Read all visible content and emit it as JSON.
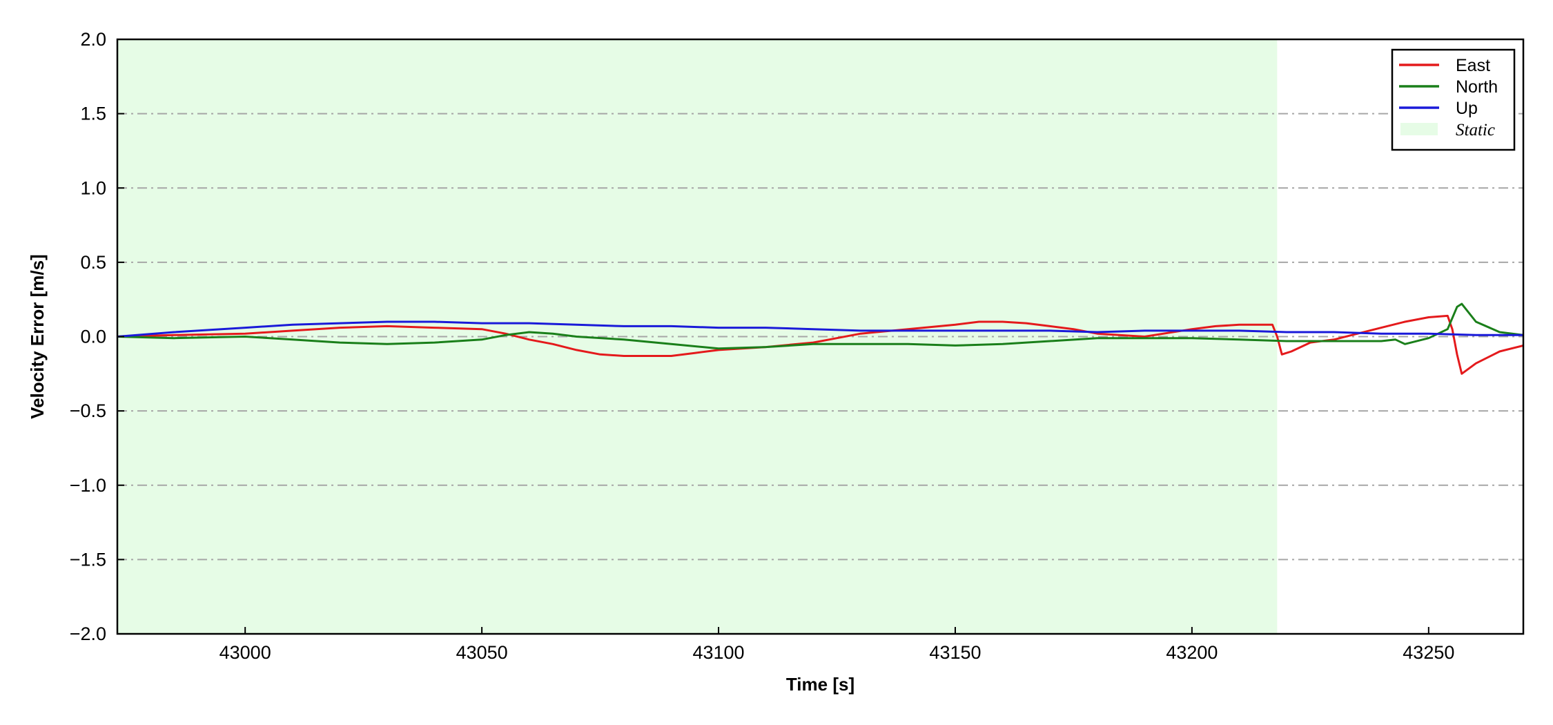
{
  "chart_data": {
    "type": "line",
    "xlabel": "Time [s]",
    "ylabel": "Velocity Error [m/s]",
    "xlim": [
      42973,
      43270
    ],
    "ylim": [
      -2.0,
      2.0
    ],
    "x_ticks": [
      43000,
      43050,
      43100,
      43150,
      43200,
      43250
    ],
    "x_tick_labels": [
      "43000",
      "43050",
      "43100",
      "43150",
      "43200",
      "43250"
    ],
    "y_ticks": [
      2.0,
      1.5,
      1.0,
      0.5,
      0.0,
      -0.5,
      -1.0,
      -1.5,
      -2.0
    ],
    "y_tick_labels": [
      "2.0",
      "1.5",
      "1.0",
      "0.5",
      "0.0",
      "−0.5",
      "−1.0",
      "−1.5",
      "−2.0"
    ],
    "grid": "horizontal dash-dot, gray",
    "legend_position": "top-right",
    "shaded_region": {
      "label": "Static",
      "x_start": 42973,
      "x_end": 43218,
      "color": "#e6fce6"
    },
    "series": [
      {
        "name": "East",
        "color": "#e41a1c",
        "x": [
          42973,
          42985,
          43000,
          43010,
          43020,
          43030,
          43040,
          43050,
          43055,
          43060,
          43065,
          43070,
          43075,
          43080,
          43085,
          43090,
          43095,
          43100,
          43110,
          43120,
          43125,
          43130,
          43140,
          43150,
          43155,
          43160,
          43165,
          43170,
          43175,
          43180,
          43190,
          43200,
          43205,
          43210,
          43215,
          43217,
          43218,
          43219,
          43221,
          43225,
          43230,
          43235,
          43240,
          43245,
          43250,
          43254,
          43255,
          43256,
          43257,
          43260,
          43265,
          43270
        ],
        "y": [
          0.0,
          0.01,
          0.02,
          0.04,
          0.06,
          0.07,
          0.06,
          0.05,
          0.02,
          -0.02,
          -0.05,
          -0.09,
          -0.12,
          -0.13,
          -0.13,
          -0.13,
          -0.11,
          -0.09,
          -0.07,
          -0.04,
          -0.01,
          0.02,
          0.05,
          0.08,
          0.1,
          0.1,
          0.09,
          0.07,
          0.05,
          0.02,
          0.0,
          0.05,
          0.07,
          0.08,
          0.08,
          0.08,
          0.0,
          -0.12,
          -0.1,
          -0.04,
          -0.02,
          0.02,
          0.06,
          0.1,
          0.13,
          0.14,
          0.05,
          -0.12,
          -0.25,
          -0.18,
          -0.1,
          -0.06
        ]
      },
      {
        "name": "North",
        "color": "#1a7f1a",
        "x": [
          42973,
          42985,
          43000,
          43010,
          43020,
          43030,
          43040,
          43050,
          43055,
          43060,
          43065,
          43070,
          43080,
          43090,
          43100,
          43110,
          43120,
          43130,
          43140,
          43150,
          43160,
          43170,
          43180,
          43190,
          43200,
          43210,
          43220,
          43230,
          43240,
          43243,
          43245,
          43250,
          43254,
          43256,
          43257,
          43260,
          43265,
          43270
        ],
        "y": [
          0.0,
          -0.01,
          0.0,
          -0.02,
          -0.04,
          -0.05,
          -0.04,
          -0.02,
          0.01,
          0.03,
          0.02,
          0.0,
          -0.02,
          -0.05,
          -0.08,
          -0.07,
          -0.05,
          -0.05,
          -0.05,
          -0.06,
          -0.05,
          -0.03,
          -0.01,
          -0.01,
          -0.01,
          -0.02,
          -0.03,
          -0.03,
          -0.03,
          -0.02,
          -0.05,
          -0.01,
          0.05,
          0.2,
          0.22,
          0.1,
          0.03,
          0.01
        ]
      },
      {
        "name": "Up",
        "color": "#1a1ad9",
        "x": [
          42973,
          42985,
          43000,
          43010,
          43020,
          43030,
          43040,
          43050,
          43060,
          43070,
          43080,
          43090,
          43100,
          43110,
          43120,
          43130,
          43140,
          43150,
          43160,
          43170,
          43180,
          43190,
          43200,
          43210,
          43220,
          43230,
          43240,
          43250,
          43260,
          43270
        ],
        "y": [
          0.0,
          0.03,
          0.06,
          0.08,
          0.09,
          0.1,
          0.1,
          0.09,
          0.09,
          0.08,
          0.07,
          0.07,
          0.06,
          0.06,
          0.05,
          0.04,
          0.04,
          0.04,
          0.04,
          0.04,
          0.03,
          0.04,
          0.04,
          0.04,
          0.03,
          0.03,
          0.02,
          0.02,
          0.01,
          0.01
        ]
      }
    ],
    "legend": [
      {
        "label": "East",
        "kind": "line",
        "color": "#e41a1c"
      },
      {
        "label": "North",
        "kind": "line",
        "color": "#1a7f1a"
      },
      {
        "label": "Up",
        "kind": "line",
        "color": "#1a1ad9"
      },
      {
        "label": "Static",
        "kind": "patch",
        "color": "#e6fce6"
      }
    ]
  }
}
